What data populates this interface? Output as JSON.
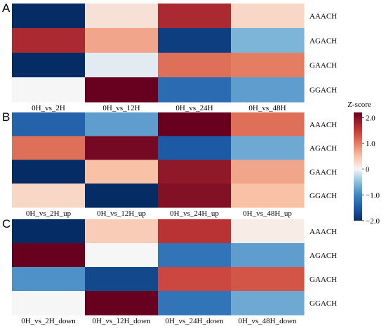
{
  "chart_data": [
    {
      "type": "heatmap",
      "panel_label": "A",
      "columns": [
        "0H_vs_2H",
        "0H_vs_12H",
        "0H_vs_24H",
        "0H_vs_48H"
      ],
      "rows": [
        "AAACH",
        "AGACH",
        "GAACH",
        "GGACH"
      ],
      "values": [
        [
          -2.0,
          0.2,
          1.7,
          0.3
        ],
        [
          1.7,
          0.7,
          -1.8,
          -0.6
        ],
        [
          -2.0,
          -0.1,
          1.1,
          1.0
        ],
        [
          0.0,
          2.2,
          -1.3,
          -0.8
        ]
      ]
    },
    {
      "type": "heatmap",
      "panel_label": "B",
      "columns": [
        "0H_vs_2H_up",
        "0H_vs_12H_up",
        "0H_vs_24H_up",
        "0H_vs_48H_up"
      ],
      "rows": [
        "AAACH",
        "AGACH",
        "GAACH",
        "GGACH"
      ],
      "values": [
        [
          -1.4,
          -0.8,
          2.2,
          1.1
        ],
        [
          1.1,
          2.1,
          -1.5,
          -0.7
        ],
        [
          -2.0,
          0.5,
          1.9,
          0.7
        ],
        [
          0.3,
          -2.0,
          2.0,
          0.5
        ]
      ]
    },
    {
      "type": "heatmap",
      "panel_label": "C",
      "columns": [
        "0H_vs_2H_down",
        "0H_vs_12H_down",
        "0H_vs_24H_down",
        "0H_vs_48H_down"
      ],
      "rows": [
        "AAACH",
        "AGACH",
        "GAACH",
        "GGACH"
      ],
      "values": [
        [
          -2.0,
          0.4,
          1.6,
          0.1
        ],
        [
          2.2,
          0.0,
          -1.2,
          -0.8
        ],
        [
          -0.9,
          -1.7,
          1.4,
          1.3
        ],
        [
          0.0,
          2.3,
          -1.2,
          -0.7
        ]
      ]
    }
  ],
  "colorbar": {
    "title": "Z-score",
    "min": -2.0,
    "max": 2.2,
    "tick_values": [
      2.0,
      1.0,
      0,
      -1.0,
      -2.0
    ],
    "tick_labels": [
      "2.0",
      "1.0",
      "0",
      "−1.0",
      "−2.0"
    ],
    "colorscale": [
      [
        -2.0,
        "#062c66"
      ],
      [
        -1.5,
        "#1d5aa6"
      ],
      [
        -1.0,
        "#3e85c3"
      ],
      [
        -0.5,
        "#8dc1dd"
      ],
      [
        0.0,
        "#f6f6f6"
      ],
      [
        0.5,
        "#f9c2a6"
      ],
      [
        1.0,
        "#e47d62"
      ],
      [
        1.5,
        "#c63a37"
      ],
      [
        2.2,
        "#68001f"
      ]
    ]
  }
}
